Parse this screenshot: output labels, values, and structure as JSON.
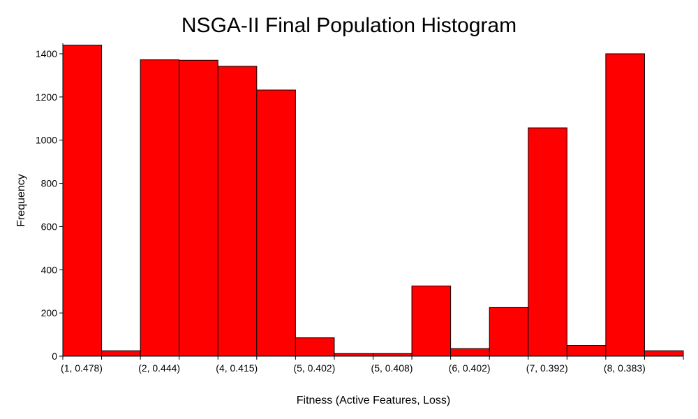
{
  "chart_data": {
    "type": "bar",
    "title": "NSGA-II Final Population Histogram",
    "xlabel": "Fitness (Active Features, Loss)",
    "ylabel": "Frequency",
    "ylim": [
      0,
      1450
    ],
    "yticks": [
      0,
      200,
      400,
      600,
      800,
      1000,
      1200,
      1400
    ],
    "xtick_labels": [
      "(1, 0.478)",
      "(2, 0.444)",
      "(4, 0.415)",
      "(5, 0.402)",
      "(5, 0.408)",
      "(6, 0.402)",
      "(7, 0.392)",
      "(8, 0.383)"
    ],
    "bin_count": 16,
    "values": [
      1440,
      25,
      1372,
      1370,
      1342,
      1232,
      85,
      12,
      12,
      325,
      35,
      225,
      1057,
      50,
      1400,
      25
    ],
    "bar_color": "#ff0000",
    "edge_color": "#000000",
    "grid": false
  }
}
